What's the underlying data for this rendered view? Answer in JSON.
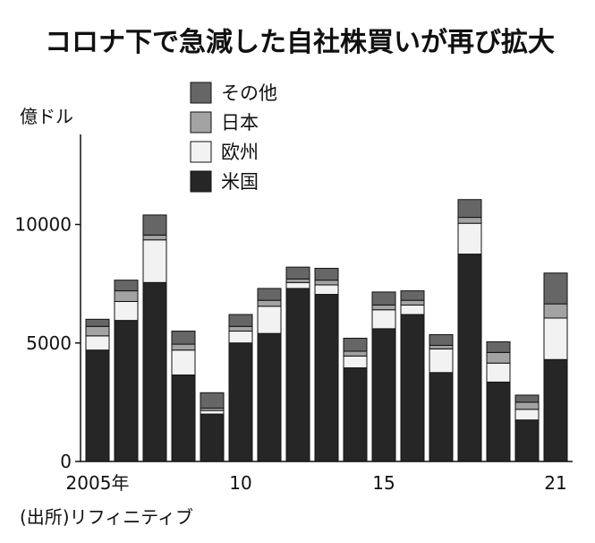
{
  "chart_data": {
    "type": "bar",
    "stacked": true,
    "title": "コロナ下で急減した自社株買いが再び拡大",
    "ylabel": "億ドル",
    "ylim": [
      0,
      13800
    ],
    "yticks": [
      0,
      5000,
      10000
    ],
    "grid": false,
    "legend_position": "top-left",
    "x": [
      2005,
      2006,
      2007,
      2008,
      2009,
      2010,
      2011,
      2012,
      2013,
      2014,
      2015,
      2016,
      2017,
      2018,
      2019,
      2020,
      2021
    ],
    "xticks": [
      {
        "value": 2005,
        "label": "2005年"
      },
      {
        "value": 2010,
        "label": "10"
      },
      {
        "value": 2015,
        "label": "15"
      },
      {
        "value": 2021,
        "label": "21"
      }
    ],
    "series": [
      {
        "name": "米国",
        "color": "#262626",
        "values": [
          4700,
          5950,
          7550,
          3650,
          2000,
          5000,
          5400,
          7300,
          7050,
          3950,
          5600,
          6200,
          3750,
          8750,
          3350,
          1750,
          4300
        ]
      },
      {
        "name": "欧州",
        "color": "#f2f2f2",
        "values": [
          600,
          800,
          1800,
          1050,
          150,
          500,
          1150,
          250,
          400,
          500,
          800,
          400,
          1000,
          1300,
          800,
          450,
          1750
        ]
      },
      {
        "name": "日本",
        "color": "#a3a3a3",
        "values": [
          400,
          450,
          200,
          250,
          100,
          200,
          250,
          150,
          200,
          200,
          200,
          200,
          150,
          250,
          450,
          300,
          600
        ]
      },
      {
        "name": "その他",
        "color": "#666666",
        "values": [
          300,
          450,
          850,
          550,
          650,
          500,
          500,
          500,
          500,
          550,
          550,
          400,
          450,
          750,
          450,
          300,
          1300
        ]
      }
    ]
  },
  "source": "(出所)リフィニティブ"
}
